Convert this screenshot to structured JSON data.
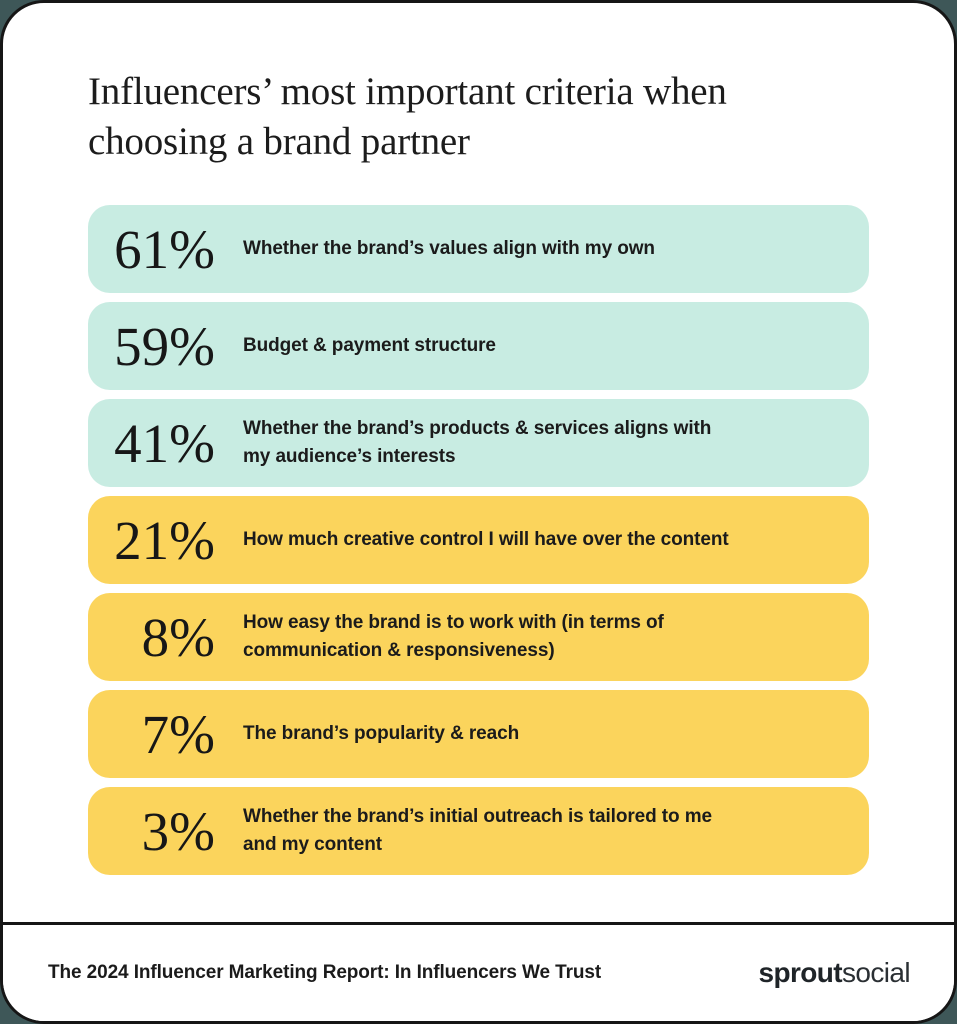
{
  "header": {
    "title": "Influencers’ most important criteria when\nchoosing a brand partner"
  },
  "chart_data": {
    "type": "bar",
    "orientation": "horizontal",
    "title": "Influencers’ most important criteria when choosing a brand partner",
    "categories": [
      "Whether the brand’s values align with my own",
      "Budget & payment structure",
      "Whether the brand’s products & services aligns with my audience’s interests",
      "How much creative control I will have over the content",
      "How easy the brand is to work with (in terms of communication & responsiveness)",
      "The brand’s popularity & reach",
      "Whether the brand’s initial outreach is tailored to me and my content"
    ],
    "values": [
      61,
      59,
      41,
      21,
      8,
      7,
      3
    ],
    "unit": "%",
    "value_range": [
      0,
      100
    ],
    "grid": false,
    "legend": false,
    "colors": {
      "mint": "#c8ece2",
      "yellow": "#fbd45c",
      "ink": "#1b1b1b",
      "card_background": "#ffffff",
      "page_background": "#3e5758"
    },
    "color_assignment": [
      "mint",
      "mint",
      "mint",
      "yellow",
      "yellow",
      "yellow",
      "yellow"
    ]
  },
  "rows": [
    {
      "percent": "61%",
      "label": "Whether the brand’s values align with my own",
      "color": "mint"
    },
    {
      "percent": "59%",
      "label": "Budget & payment structure",
      "color": "mint"
    },
    {
      "percent": "41%",
      "label": "Whether the brand’s products & services aligns with\nmy audience’s interests",
      "color": "mint"
    },
    {
      "percent": "21%",
      "label": "How much creative control I will have over the content",
      "color": "yellow"
    },
    {
      "percent": "8%",
      "label": "How easy the brand is to work with (in terms of\ncommunication & responsiveness)",
      "color": "yellow"
    },
    {
      "percent": "7%",
      "label": "The brand’s popularity & reach",
      "color": "yellow"
    },
    {
      "percent": "3%",
      "label": "Whether the brand’s initial outreach is tailored to me\nand my content",
      "color": "yellow"
    }
  ],
  "footer": {
    "source": "The 2024 Influencer Marketing Report: In Influencers We Trust",
    "logo_bold": "sprout",
    "logo_light": "social"
  }
}
